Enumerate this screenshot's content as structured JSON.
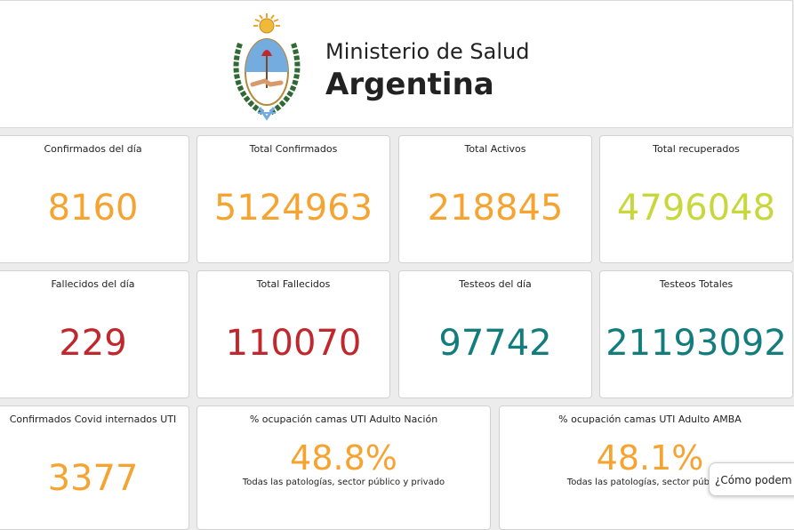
{
  "header": {
    "brand_line1": "Ministerio de Salud",
    "brand_line2": "Argentina",
    "logo_icon": "argentina-coat-of-arms-icon"
  },
  "colors": {
    "orange": "#f5a432",
    "lime": "#c8d83c",
    "red": "#c0282d",
    "teal": "#137d7d"
  },
  "cards": [
    {
      "label": "Confirmados del día",
      "value": "8160",
      "color": "#f5a432"
    },
    {
      "label": "Total Confirmados",
      "value": "5124963",
      "color": "#f5a432"
    },
    {
      "label": "Total Activos",
      "value": "218845",
      "color": "#f5a432"
    },
    {
      "label": "Total recuperados",
      "value": "4796048",
      "color": "#c8d83c"
    },
    {
      "label": "Fallecidos del día",
      "value": "229",
      "color": "#c0282d"
    },
    {
      "label": "Total Fallecidos",
      "value": "110070",
      "color": "#c0282d"
    },
    {
      "label": "Testeos del día",
      "value": "97742",
      "color": "#137d7d"
    },
    {
      "label": "Testeos Totales",
      "value": "21193092",
      "color": "#137d7d"
    },
    {
      "label": "Confirmados Covid internados UTI",
      "value": "3377",
      "color": "#f5a432"
    }
  ],
  "pct_cards": [
    {
      "label": "% ocupación camas UTI Adulto Nación",
      "value": "48.8%",
      "sub": "Todas las patologías, sector público y privado",
      "color": "#f5a432"
    },
    {
      "label": "% ocupación camas UTI Adulto AMBA",
      "value": "48.1%",
      "sub": "Todas las patologías, sector público y",
      "color": "#f5a432"
    }
  ],
  "chat": {
    "text": "¿Cómo podem"
  }
}
